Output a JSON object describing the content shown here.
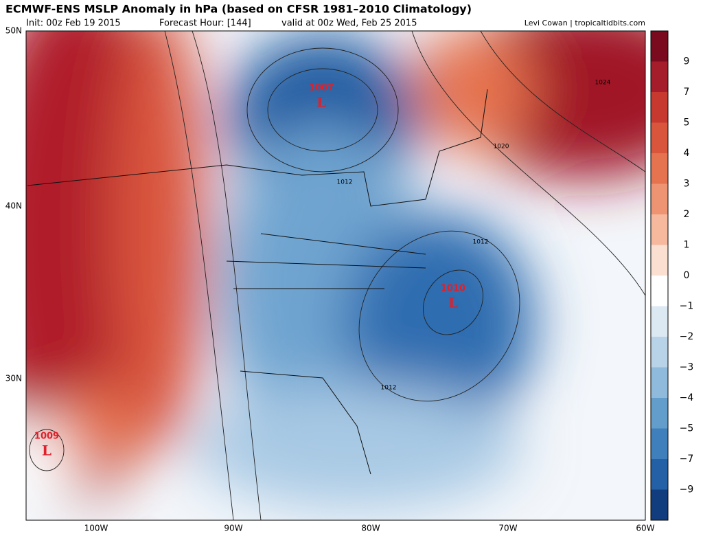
{
  "header": {
    "title": "ECMWF-ENS MSLP Anomaly in hPa (based on CFSR 1981–2010 Climatology)",
    "init": "Init: 00z Feb 19 2015",
    "forecast_hour": "Forecast Hour: [144]",
    "valid": "valid at 00z Wed, Feb 25 2015",
    "credit": "Levi Cowan | tropicaltidbits.com"
  },
  "map": {
    "lat_labels": [
      "50N",
      "40N",
      "30N"
    ],
    "lon_labels": [
      "100W",
      "90W",
      "80W",
      "70W",
      "60W"
    ],
    "contour_labels": [
      1024,
      1020,
      1012,
      1012,
      1012
    ],
    "lows": [
      {
        "pressure": 1007,
        "symbol": "L"
      },
      {
        "pressure": 1010,
        "symbol": "L"
      },
      {
        "pressure": 1009,
        "symbol": "L"
      }
    ]
  },
  "colorbar": {
    "labels": [
      "9",
      "7",
      "5",
      "4",
      "3",
      "2",
      "1",
      "0",
      "−1",
      "−2",
      "−3",
      "−4",
      "−5",
      "−7",
      "−9"
    ],
    "colors": [
      "#7a0a1e",
      "#a51d2b",
      "#c7392f",
      "#d9553c",
      "#e6734f",
      "#ef9472",
      "#f6b99e",
      "#fbe0d2",
      "#ffffff",
      "#dce9f3",
      "#b8d3e8",
      "#8fbadb",
      "#629dcb",
      "#3f7fbc",
      "#2460a6",
      "#113d7e"
    ]
  }
}
